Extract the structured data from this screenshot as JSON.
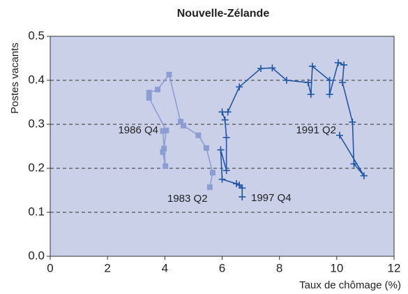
{
  "chart_data": {
    "type": "line",
    "title": "Nouvelle-Zélande",
    "x_label": "Taux de chômage (%)",
    "y_label": "Postes vacants",
    "xlim": [
      0,
      12
    ],
    "xticks": [
      0,
      2,
      4,
      6,
      8,
      10,
      12
    ],
    "ylim": [
      0,
      0.5
    ],
    "yticks": [
      {
        "value": 0,
        "label": "0.0"
      },
      0.1,
      0.2,
      0.3,
      0.4,
      0.5
    ],
    "grid": true,
    "series": [
      {
        "color": "#8c9dd3",
        "marker": "square",
        "x": [
          5.57,
          5.67,
          5.45,
          5.17,
          4.65,
          4.55,
          4.15,
          3.75,
          3.45,
          3.45,
          4.05,
          3.97,
          3.93,
          4.02,
          3.93
        ],
        "values": [
          0.157,
          0.19,
          0.246,
          0.275,
          0.297,
          0.306,
          0.413,
          0.379,
          0.372,
          0.36,
          0.286,
          0.245,
          0.237,
          0.205,
          0.285
        ]
      },
      {
        "color": "#1f56a6",
        "marker": "plus",
        "x": [
          10.1,
          10.95,
          10.6,
          10.55,
          10.2,
          10.25,
          10.05,
          9.75,
          9.75,
          9.15,
          9.1,
          9.0,
          8.25,
          7.75,
          7.35,
          6.6,
          6.2,
          6.0,
          6.1,
          6.15,
          6.15,
          5.95,
          6.0,
          6.5,
          6.6,
          6.7,
          6.7
        ],
        "values": [
          0.275,
          0.183,
          0.21,
          0.305,
          0.395,
          0.435,
          0.44,
          0.368,
          0.4,
          0.432,
          0.368,
          0.395,
          0.4,
          0.428,
          0.427,
          0.385,
          0.328,
          0.328,
          0.31,
          0.27,
          0.195,
          0.242,
          0.175,
          0.165,
          0.162,
          0.155,
          0.135
        ]
      }
    ],
    "annotations": [
      "1986 Q4",
      "1983 Q2",
      "1991 Q2",
      "1997 Q4"
    ]
  }
}
